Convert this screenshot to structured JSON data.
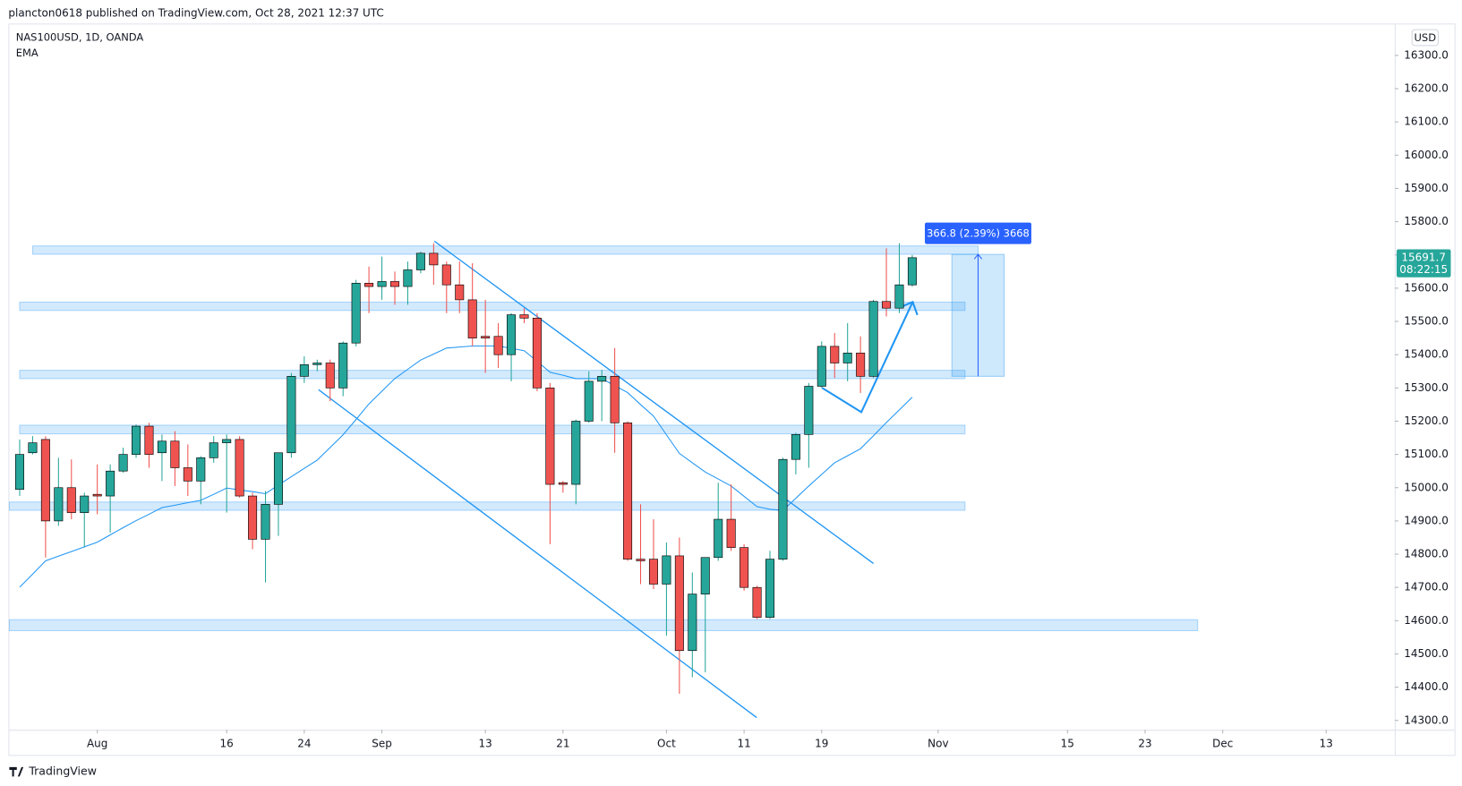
{
  "header": {
    "publisher": "plancton0618 published on TradingView.com, Oct 28, 2021 12:37 UTC"
  },
  "footer": {
    "brand": "TradingView"
  },
  "chart_data": {
    "type": "candlestick",
    "symbol": "NAS100USD, 1D, OANDA",
    "indicator": "EMA",
    "currency": "USD",
    "countdown": "08:22:15",
    "up_color": "#26a69a",
    "down_color": "#ef5350",
    "ema_color": "#2196f3",
    "ylim": [
      14272,
      16393
    ],
    "yticks": [
      {
        "value": 14300,
        "label": "14300.0"
      },
      {
        "value": 14400,
        "label": "14400.0"
      },
      {
        "value": 14500,
        "label": "14500.0"
      },
      {
        "value": 14600,
        "label": "14600.0"
      },
      {
        "value": 14700,
        "label": "14700.0"
      },
      {
        "value": 14800,
        "label": "14800.0"
      },
      {
        "value": 14900,
        "label": "14900.0"
      },
      {
        "value": 15000,
        "label": "15000.0"
      },
      {
        "value": 15100,
        "label": "15100.0"
      },
      {
        "value": 15200,
        "label": "15200.0"
      },
      {
        "value": 15300,
        "label": "15300.0"
      },
      {
        "value": 15400,
        "label": "15400.0"
      },
      {
        "value": 15500,
        "label": "15500.0"
      },
      {
        "value": 15600,
        "label": "15600.0"
      },
      {
        "value": 15700,
        "label": "15700.0"
      },
      {
        "value": 15800,
        "label": "15800.0"
      },
      {
        "value": 15900,
        "label": "15900.0"
      },
      {
        "value": 16000,
        "label": "16000.0"
      },
      {
        "value": 16100,
        "label": "16100.0"
      },
      {
        "value": 16200,
        "label": "16200.0"
      },
      {
        "value": 16300,
        "label": "16300.0"
      }
    ],
    "xlim": [
      -0.8,
      106.3
    ],
    "xticks": [
      {
        "value": 6,
        "label": "Aug"
      },
      {
        "value": 16,
        "label": "16"
      },
      {
        "value": 22,
        "label": "24"
      },
      {
        "value": 28,
        "label": "Sep"
      },
      {
        "value": 36,
        "label": "13"
      },
      {
        "value": 42,
        "label": "21"
      },
      {
        "value": 50,
        "label": "Oct"
      },
      {
        "value": 56,
        "label": "11"
      },
      {
        "value": 62,
        "label": "19"
      },
      {
        "value": 71,
        "label": "Nov"
      },
      {
        "value": 81,
        "label": "15"
      },
      {
        "value": 87,
        "label": "23"
      },
      {
        "value": 93,
        "label": "Dec"
      },
      {
        "value": 101,
        "label": "13"
      }
    ],
    "candles": [
      {
        "open": 14995,
        "high": 15145,
        "low": 14975,
        "close": 15100
      },
      {
        "open": 15105,
        "high": 15155,
        "low": 15100,
        "close": 15135
      },
      {
        "open": 15145,
        "high": 15155,
        "low": 14790,
        "close": 14900
      },
      {
        "open": 14900,
        "high": 15090,
        "low": 14885,
        "close": 15000
      },
      {
        "open": 15000,
        "high": 15085,
        "low": 14905,
        "close": 14925
      },
      {
        "open": 14925,
        "high": 14985,
        "low": 14820,
        "close": 14975
      },
      {
        "open": 14980,
        "high": 15070,
        "low": 14920,
        "close": 14975
      },
      {
        "open": 14975,
        "high": 15070,
        "low": 14865,
        "close": 15050
      },
      {
        "open": 15050,
        "high": 15120,
        "low": 15045,
        "close": 15100
      },
      {
        "open": 15100,
        "high": 15190,
        "low": 15090,
        "close": 15185
      },
      {
        "open": 15185,
        "high": 15195,
        "low": 15060,
        "close": 15100
      },
      {
        "open": 15105,
        "high": 15160,
        "low": 15020,
        "close": 15140
      },
      {
        "open": 15140,
        "high": 15170,
        "low": 15005,
        "close": 15060
      },
      {
        "open": 15060,
        "high": 15130,
        "low": 14975,
        "close": 15020
      },
      {
        "open": 15020,
        "high": 15095,
        "low": 14950,
        "close": 15090
      },
      {
        "open": 15090,
        "high": 15155,
        "low": 15075,
        "close": 15135
      },
      {
        "open": 15135,
        "high": 15160,
        "low": 14925,
        "close": 15145
      },
      {
        "open": 15145,
        "high": 15155,
        "low": 14970,
        "close": 14975
      },
      {
        "open": 14975,
        "high": 14985,
        "low": 14815,
        "close": 14845
      },
      {
        "open": 14845,
        "high": 14990,
        "low": 14715,
        "close": 14950
      },
      {
        "open": 14950,
        "high": 15105,
        "low": 14855,
        "close": 15105
      },
      {
        "open": 15105,
        "high": 15345,
        "low": 15090,
        "close": 15335
      },
      {
        "open": 15335,
        "high": 15395,
        "low": 15315,
        "close": 15370
      },
      {
        "open": 15370,
        "high": 15385,
        "low": 15350,
        "close": 15375
      },
      {
        "open": 15375,
        "high": 15385,
        "low": 15260,
        "close": 15300
      },
      {
        "open": 15300,
        "high": 15440,
        "low": 15275,
        "close": 15435
      },
      {
        "open": 15435,
        "high": 15625,
        "low": 15425,
        "close": 15615
      },
      {
        "open": 15615,
        "high": 15665,
        "low": 15525,
        "close": 15605
      },
      {
        "open": 15605,
        "high": 15695,
        "low": 15565,
        "close": 15620
      },
      {
        "open": 15620,
        "high": 15650,
        "low": 15550,
        "close": 15605
      },
      {
        "open": 15605,
        "high": 15680,
        "low": 15550,
        "close": 15655
      },
      {
        "open": 15655,
        "high": 15710,
        "low": 15645,
        "close": 15705
      },
      {
        "open": 15705,
        "high": 15735,
        "low": 15610,
        "close": 15670
      },
      {
        "open": 15670,
        "high": 15680,
        "low": 15525,
        "close": 15610
      },
      {
        "open": 15610,
        "high": 15680,
        "low": 15525,
        "close": 15565
      },
      {
        "open": 15565,
        "high": 15675,
        "low": 15425,
        "close": 15450
      },
      {
        "open": 15455,
        "high": 15565,
        "low": 15345,
        "close": 15450
      },
      {
        "open": 15455,
        "high": 15495,
        "low": 15360,
        "close": 15400
      },
      {
        "open": 15400,
        "high": 15525,
        "low": 15320,
        "close": 15520
      },
      {
        "open": 15520,
        "high": 15540,
        "low": 15495,
        "close": 15510
      },
      {
        "open": 15510,
        "high": 15525,
        "low": 15290,
        "close": 15300
      },
      {
        "open": 15300,
        "high": 15315,
        "low": 14830,
        "close": 15010
      },
      {
        "open": 15015,
        "high": 15020,
        "low": 14985,
        "close": 15010
      },
      {
        "open": 15010,
        "high": 15205,
        "low": 14950,
        "close": 15200
      },
      {
        "open": 15200,
        "high": 15350,
        "low": 15195,
        "close": 15320
      },
      {
        "open": 15320,
        "high": 15355,
        "low": 15200,
        "close": 15335
      },
      {
        "open": 15335,
        "high": 15420,
        "low": 15105,
        "close": 15195
      },
      {
        "open": 15195,
        "high": 15200,
        "low": 14780,
        "close": 14785
      },
      {
        "open": 14785,
        "high": 14950,
        "low": 14710,
        "close": 14780
      },
      {
        "open": 14785,
        "high": 14905,
        "low": 14695,
        "close": 14710
      },
      {
        "open": 14710,
        "high": 14835,
        "low": 14555,
        "close": 14795
      },
      {
        "open": 14795,
        "high": 14850,
        "low": 14380,
        "close": 14510
      },
      {
        "open": 14510,
        "high": 14745,
        "low": 14430,
        "close": 14680
      },
      {
        "open": 14680,
        "high": 14790,
        "low": 14445,
        "close": 14790
      },
      {
        "open": 14790,
        "high": 15015,
        "low": 14780,
        "close": 14905
      },
      {
        "open": 14905,
        "high": 15010,
        "low": 14810,
        "close": 14820
      },
      {
        "open": 14820,
        "high": 14830,
        "low": 14690,
        "close": 14700
      },
      {
        "open": 14700,
        "high": 14705,
        "low": 14605,
        "close": 14610
      },
      {
        "open": 14610,
        "high": 14810,
        "low": 14605,
        "close": 14785
      },
      {
        "open": 14785,
        "high": 15090,
        "low": 14780,
        "close": 15085
      },
      {
        "open": 15085,
        "high": 15165,
        "low": 15040,
        "close": 15160
      },
      {
        "open": 15160,
        "high": 15315,
        "low": 15060,
        "close": 15305
      },
      {
        "open": 15305,
        "high": 15440,
        "low": 15300,
        "close": 15425
      },
      {
        "open": 15425,
        "high": 15465,
        "low": 15330,
        "close": 15375
      },
      {
        "open": 15375,
        "high": 15495,
        "low": 15320,
        "close": 15405
      },
      {
        "open": 15405,
        "high": 15455,
        "low": 15285,
        "close": 15335
      },
      {
        "open": 15335,
        "high": 15565,
        "low": 15330,
        "close": 15560
      },
      {
        "open": 15560,
        "high": 15720,
        "low": 15515,
        "close": 15540
      },
      {
        "open": 15540,
        "high": 15735,
        "low": 15525,
        "close": 15610
      },
      {
        "open": 15610,
        "high": 15700,
        "low": 15605,
        "close": 15691.7
      }
    ],
    "ema": [
      14701,
      14740,
      14780,
      14794,
      14808,
      14822,
      14836,
      14858,
      14880,
      14901,
      14920,
      14940,
      14947,
      14955,
      14962,
      14980,
      14999,
      14993,
      14988,
      14982,
      15008,
      15033,
      15058,
      15083,
      15121,
      15159,
      15205,
      15252,
      15290,
      15328,
      15356,
      15384,
      15402,
      15420,
      15423,
      15426,
      15426,
      15426,
      15419,
      15412,
      15380,
      15347,
      15338,
      15328,
      15328,
      15328,
      15307,
      15286,
      15250,
      15215,
      15159,
      15103,
      15075,
      15047,
      15026,
      15005,
      14974,
      14943,
      14935,
      14932,
      14968,
      15005,
      15040,
      15075,
      15096,
      15117,
      15156,
      15196,
      15234,
      15272
    ],
    "zones": [
      [
        15702,
        15727
      ],
      [
        15533,
        15558
      ],
      [
        15328,
        15353
      ],
      [
        15162,
        15188
      ],
      [
        14932,
        14957
      ],
      [
        14570,
        14603
      ]
    ],
    "measure": {
      "from": 15334.9,
      "to": 15701.7,
      "label": "366.8 (2.39%) 3668"
    }
  }
}
